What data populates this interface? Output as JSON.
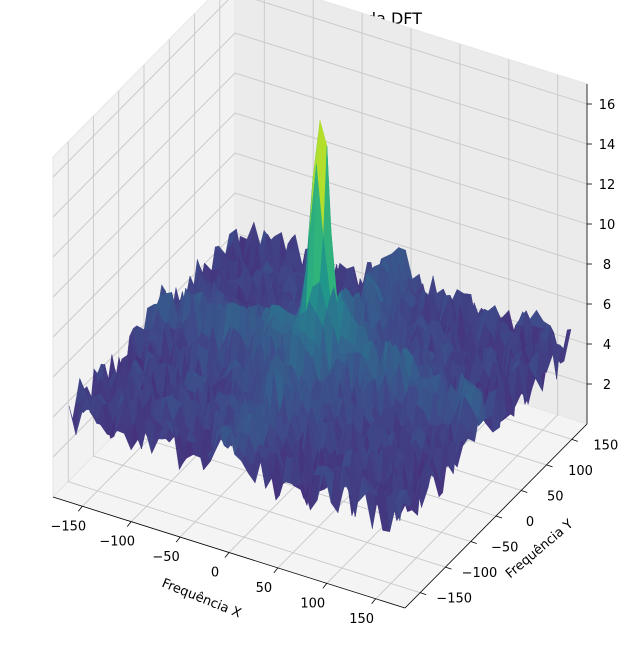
{
  "chart_data": {
    "type": "surface3d",
    "title": "Representação 3D da DFT",
    "xlabel": "Frequência X",
    "ylabel": "Frequência Y",
    "zlabel": "",
    "colormap": "viridis",
    "pane_color": "#f2f2f2",
    "grid": true,
    "xlim": [
      -180,
      180
    ],
    "ylim": [
      -180,
      180
    ],
    "zlim": [
      0,
      17
    ],
    "xticks": [
      -150,
      -100,
      -50,
      0,
      50,
      100,
      150
    ],
    "yticks": [
      -150,
      -100,
      -50,
      0,
      50,
      100,
      150
    ],
    "zticks": [
      2,
      4,
      6,
      8,
      10,
      12,
      14,
      16
    ],
    "peak": {
      "x": 0,
      "y": 0,
      "z": 16.5
    },
    "baseline_magnitude": 4.0,
    "noise_amplitude": 1.2
  }
}
